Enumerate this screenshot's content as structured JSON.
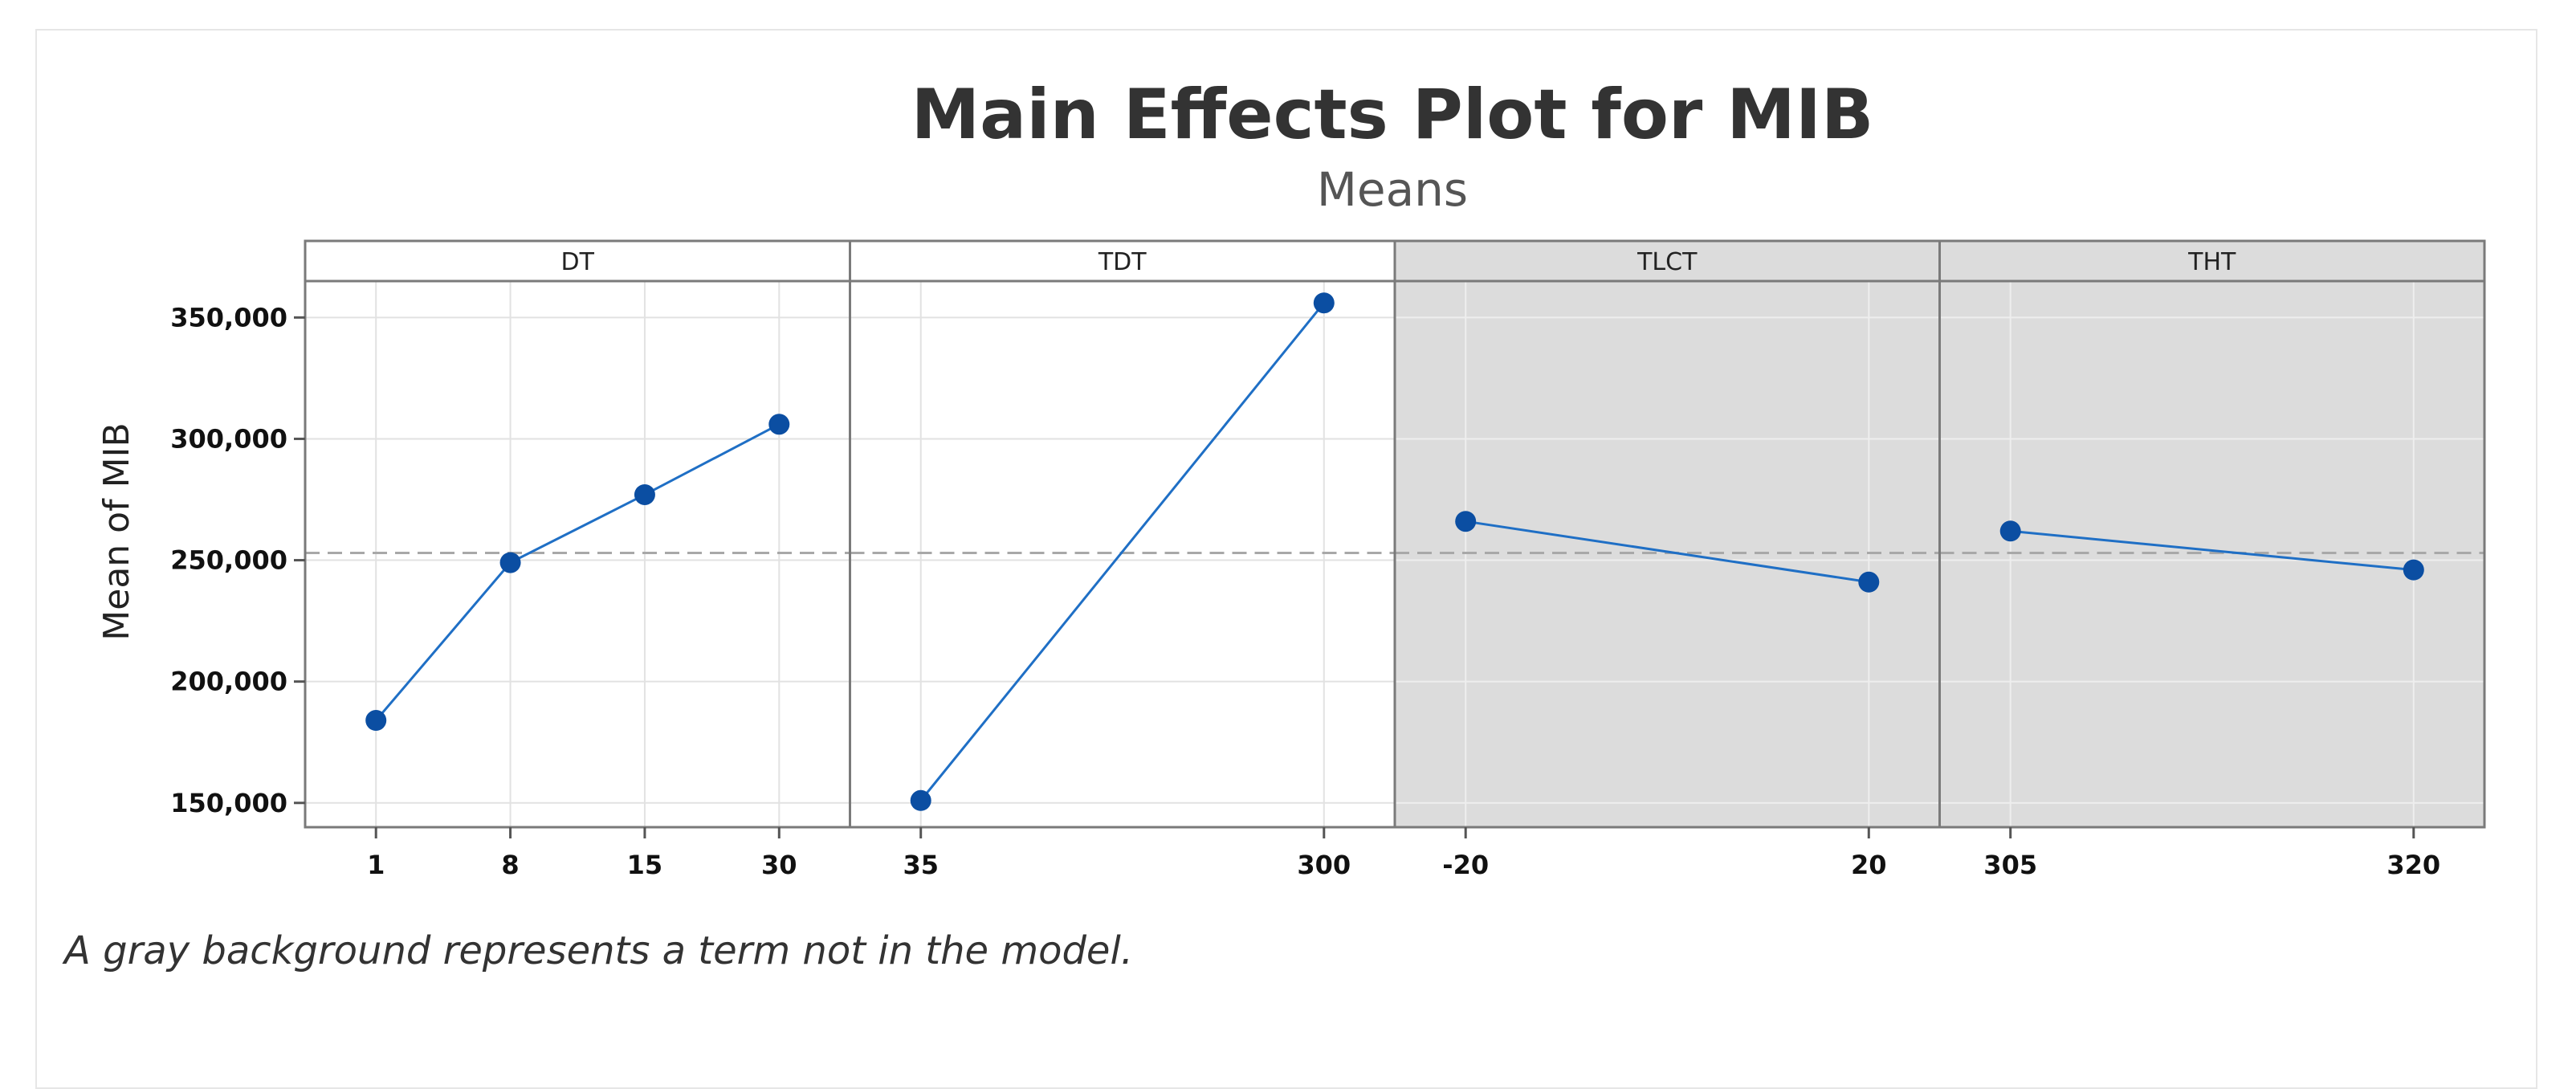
{
  "chart_data": {
    "type": "line",
    "title": "Main Effects Plot for MIB",
    "subtitle": "Means",
    "ylabel": "Mean of MIB",
    "ylim": [
      140000,
      365000
    ],
    "y_ticks": [
      150000,
      200000,
      250000,
      300000,
      350000
    ],
    "y_tick_labels": [
      "150,000",
      "200,000",
      "250,000",
      "300,000",
      "350,000"
    ],
    "reference_line": 253000,
    "grid": true,
    "footnote": "A gray background represents a term not in the model.",
    "colors": {
      "series": "#0b4ea2",
      "line": "#1f6fc5",
      "panel_gray": "#dcdcdc",
      "panel_white": "#ffffff",
      "reference": "#a8a8a8"
    },
    "panels": [
      {
        "name": "DT",
        "in_model": true,
        "x": [
          "1",
          "8",
          "15",
          "30"
        ],
        "values": [
          184000,
          249000,
          277000,
          306000
        ]
      },
      {
        "name": "TDT",
        "in_model": true,
        "x": [
          "35",
          "300"
        ],
        "values": [
          151000,
          356000
        ]
      },
      {
        "name": "TLCT",
        "in_model": false,
        "x": [
          "-20",
          "20"
        ],
        "values": [
          266000,
          241000
        ]
      },
      {
        "name": "THT",
        "in_model": false,
        "x": [
          "305",
          "320"
        ],
        "values": [
          262000,
          246000
        ]
      }
    ]
  }
}
